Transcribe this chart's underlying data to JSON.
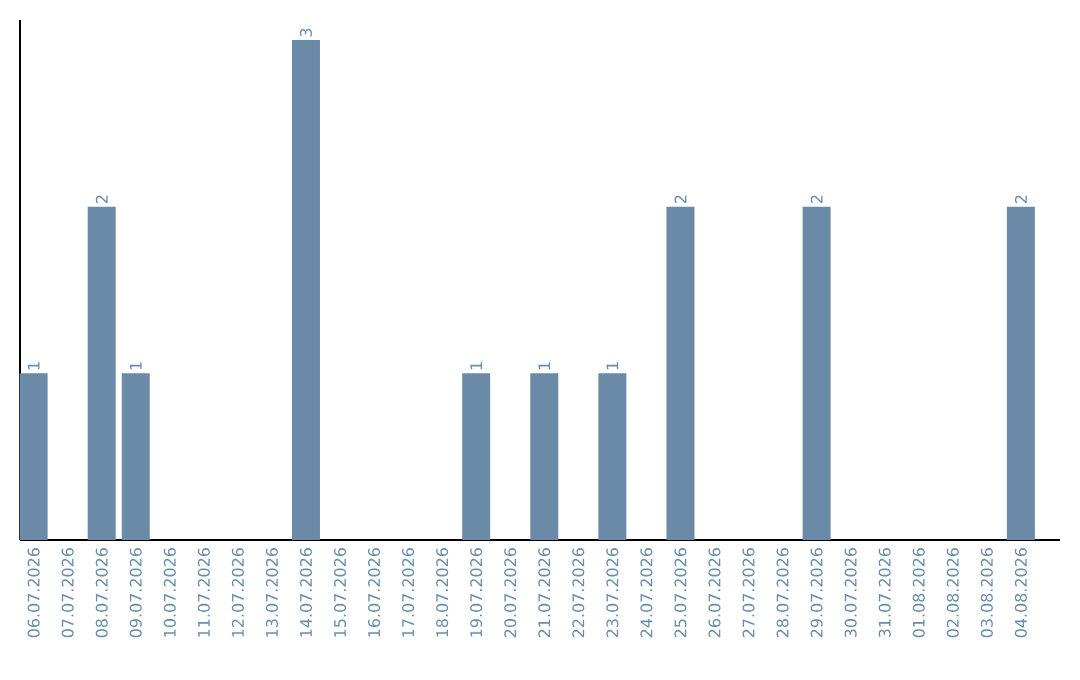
{
  "chart_data": {
    "type": "bar",
    "color": "#6a8aa8",
    "tick_labels": "x",
    "categories": [
      "06.07.2026",
      "07.07.2026",
      "08.07.2026",
      "09.07.2026",
      "10.07.2026",
      "11.07.2026",
      "12.07.2026",
      "13.07.2026",
      "14.07.2026",
      "15.07.2026",
      "16.07.2026",
      "17.07.2026",
      "18.07.2026",
      "19.07.2026",
      "20.07.2026",
      "21.07.2026",
      "22.07.2026",
      "23.07.2026",
      "24.07.2026",
      "25.07.2026",
      "26.07.2026",
      "27.07.2026",
      "28.07.2026",
      "29.07.2026",
      "30.07.2026",
      "31.07.2026",
      "01.08.2026",
      "02.08.2026",
      "03.08.2026",
      "04.08.2026"
    ],
    "values": [
      1,
      0,
      2,
      1,
      0,
      0,
      0,
      0,
      3,
      0,
      0,
      0,
      0,
      1,
      0,
      1,
      0,
      1,
      0,
      2,
      0,
      0,
      0,
      2,
      0,
      0,
      0,
      0,
      0,
      2
    ],
    "value_labels": [
      "1",
      null,
      "2",
      "1",
      null,
      null,
      null,
      null,
      "3",
      null,
      null,
      null,
      null,
      "1",
      null,
      "1",
      null,
      "1",
      null,
      "2",
      null,
      null,
      null,
      "2",
      null,
      null,
      null,
      null,
      null,
      "2"
    ]
  }
}
